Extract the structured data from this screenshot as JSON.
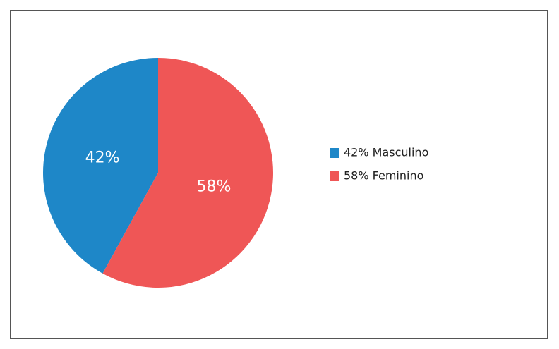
{
  "chart_data": {
    "type": "pie",
    "categories": [
      "42% Masculino",
      "58% Feminino"
    ],
    "values": [
      42,
      58
    ],
    "value_labels": [
      "42%",
      "58%"
    ],
    "colors": [
      "#1e87c8",
      "#ef5656"
    ]
  }
}
